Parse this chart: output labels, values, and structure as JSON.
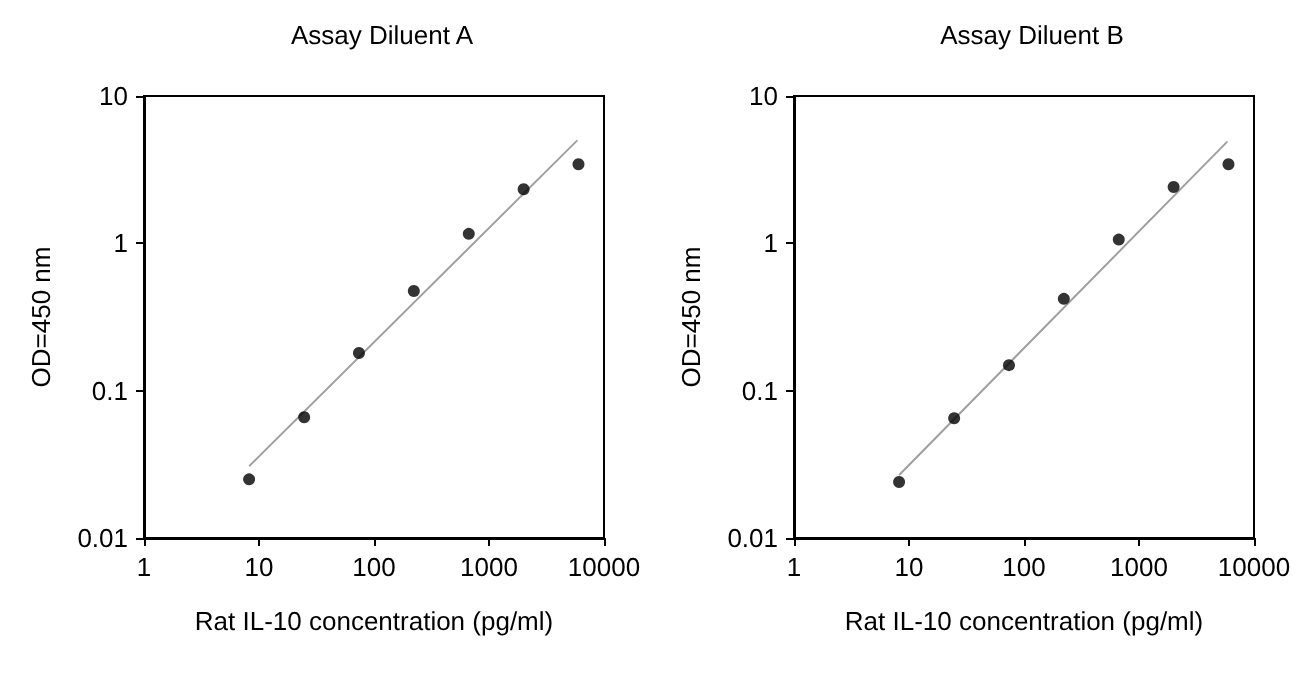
{
  "chart_data": [
    {
      "type": "scatter",
      "title": "Assay Diluent A",
      "xlabel": "Rat IL-10 concentration (pg/ml)",
      "ylabel": "OD=450 nm",
      "log": "xy",
      "grid": false,
      "marker": "circle",
      "xlim": [
        1,
        10000
      ],
      "xticks": [
        1,
        10,
        100,
        1000,
        10000
      ],
      "ylim": [
        0.01,
        10
      ],
      "yticks": [
        0.01,
        0.1,
        1,
        10
      ],
      "series": [
        {
          "color": "#000000",
          "x": [
            8.2,
            24.7,
            74,
            222,
            667,
            2000,
            6000
          ],
          "values": [
            0.025,
            0.066,
            0.18,
            0.475,
            1.16,
            2.33,
            3.44
          ]
        },
        {
          "type": "line",
          "color": "#a0a0a0",
          "marker": "none",
          "line_style": "solid",
          "x": [
            8.3,
            5800
          ],
          "values": [
            0.031,
            4.96
          ]
        }
      ]
    },
    {
      "type": "scatter",
      "title": "Assay Diluent B",
      "xlabel": "Rat IL-10 concentration (pg/ml)",
      "ylabel": "OD=450 nm",
      "log": "xy",
      "grid": false,
      "marker": "circle",
      "xlim": [
        1,
        10000
      ],
      "xticks": [
        1,
        10,
        100,
        1000,
        10000
      ],
      "ylim": [
        0.01,
        10
      ],
      "yticks": [
        0.01,
        0.1,
        1,
        10
      ],
      "series": [
        {
          "color": "#000000",
          "x": [
            8.2,
            24.7,
            74,
            222,
            667,
            2000,
            6000
          ],
          "values": [
            0.024,
            0.065,
            0.149,
            0.42,
            1.06,
            2.41,
            3.44
          ]
        },
        {
          "type": "line",
          "color": "#a0a0a0",
          "marker": "none",
          "line_style": "solid",
          "x": [
            8.3,
            5800
          ],
          "values": [
            0.027,
            4.86
          ]
        }
      ]
    }
  ]
}
